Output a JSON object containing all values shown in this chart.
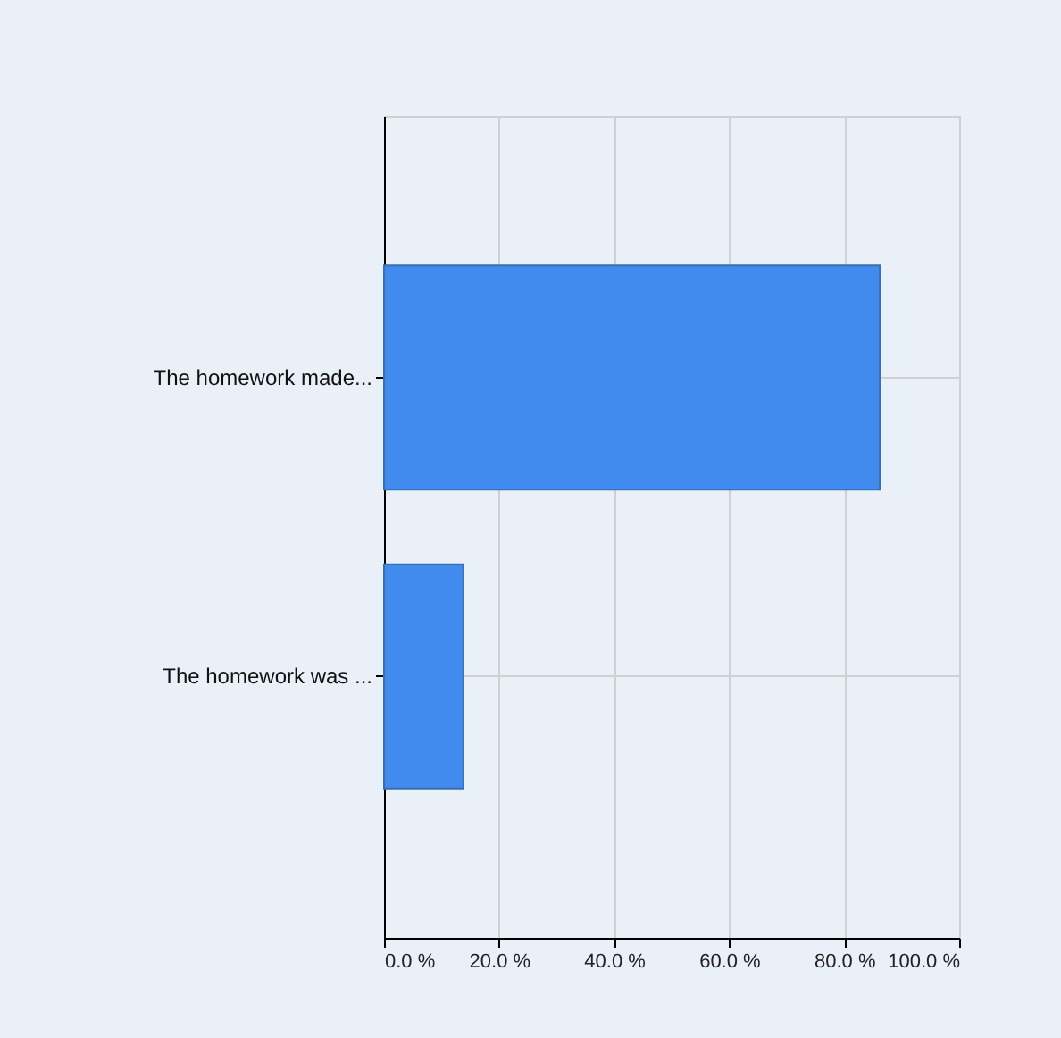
{
  "chart_data": {
    "type": "bar",
    "orientation": "horizontal",
    "categories": [
      "The homework made...",
      "The homework was ..."
    ],
    "values": [
      86.2,
      13.8
    ],
    "color": "#418bee",
    "xlim": [
      0,
      100
    ],
    "xticks": [
      {
        "value": 0,
        "label": "0.0 %"
      },
      {
        "value": 20,
        "label": "20.0 %"
      },
      {
        "value": 40,
        "label": "40.0 %"
      },
      {
        "value": 60,
        "label": "60.0 %"
      },
      {
        "value": 80,
        "label": "80.0 %"
      },
      {
        "value": 100,
        "label": "100.0 %"
      }
    ],
    "grid": true
  }
}
